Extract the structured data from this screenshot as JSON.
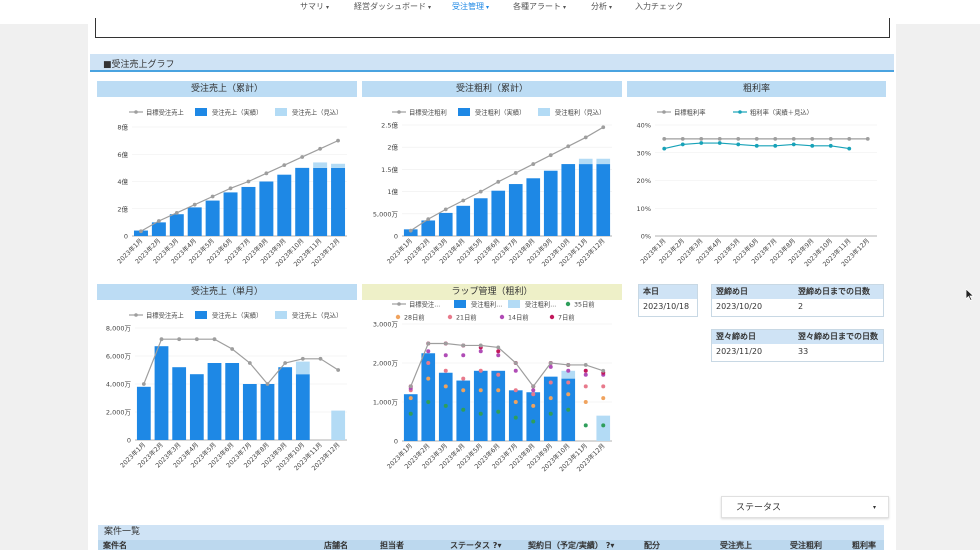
{
  "nav": [
    {
      "label": "サマリ",
      "caret": "▾"
    },
    {
      "label": "経営ダッシュボード",
      "caret": "▾"
    },
    {
      "label": "受注管理",
      "caret": "▾"
    },
    {
      "label": "各種アラート",
      "caret": "▾"
    },
    {
      "label": "分析",
      "caret": "▾"
    },
    {
      "label": "入力チェック",
      "caret": ""
    }
  ],
  "section_title": "■受注売上グラフ",
  "colors": {
    "target": "#9e9e9e",
    "actual": "#1e88e5",
    "forecast": "#b3dbf5",
    "rate_actual": "#17a2b8"
  },
  "chart_data": [
    {
      "type": "bar",
      "title": "受注売上（累計）",
      "categories": [
        "2023年1月",
        "2023年2月",
        "2023年3月",
        "2023年4月",
        "2023年5月",
        "2023年6月",
        "2023年7月",
        "2023年8月",
        "2023年9月",
        "2023年10月",
        "2023年11月",
        "2023年12月"
      ],
      "series": [
        {
          "name": "目標受注売上",
          "kind": "line",
          "values": [
            0.35,
            1.1,
            1.7,
            2.3,
            2.9,
            3.5,
            4.0,
            4.6,
            5.2,
            5.8,
            6.4,
            7.0
          ]
        },
        {
          "name": "受注売上（実績）",
          "kind": "bar",
          "values": [
            0.4,
            1.0,
            1.6,
            2.1,
            2.6,
            3.2,
            3.6,
            4.0,
            4.5,
            5.0,
            5.0,
            5.0
          ]
        },
        {
          "name": "受注売上（見込）",
          "kind": "bar",
          "values": [
            0,
            0,
            0,
            0,
            0,
            0,
            0,
            0,
            0,
            0,
            0.4,
            0.3
          ]
        }
      ],
      "yticks": [
        "0",
        "2億",
        "4億",
        "6億",
        "8億"
      ],
      "ylim": [
        0,
        8
      ]
    },
    {
      "type": "bar",
      "title": "受注粗利（累計）",
      "categories": [
        "2023年1月",
        "2023年2月",
        "2023年3月",
        "2023年4月",
        "2023年5月",
        "2023年6月",
        "2023年7月",
        "2023年8月",
        "2023年9月",
        "2023年10月",
        "2023年11月",
        "2023年12月"
      ],
      "series": [
        {
          "name": "目標受注粗利",
          "kind": "line",
          "values": [
            0.12,
            0.38,
            0.6,
            0.8,
            1.0,
            1.22,
            1.42,
            1.62,
            1.82,
            2.02,
            2.22,
            2.45
          ]
        },
        {
          "name": "受注粗利（実績）",
          "kind": "bar",
          "values": [
            0.15,
            0.35,
            0.52,
            0.68,
            0.85,
            1.02,
            1.17,
            1.3,
            1.47,
            1.62,
            1.62,
            1.62
          ]
        },
        {
          "name": "受注粗利（見込）",
          "kind": "bar",
          "values": [
            0,
            0,
            0,
            0,
            0,
            0,
            0,
            0,
            0,
            0,
            0.12,
            0.12
          ]
        }
      ],
      "yticks": [
        "0",
        "5,000万",
        "1億",
        "1.5億",
        "2億",
        "2.5億"
      ],
      "ylim": [
        0,
        2.5
      ]
    },
    {
      "type": "line",
      "title": "粗利率",
      "categories": [
        "2023年1月",
        "2023年2月",
        "2023年3月",
        "2023年4月",
        "2023年5月",
        "2023年6月",
        "2023年7月",
        "2023年8月",
        "2023年9月",
        "2023年10月",
        "2023年11月",
        "2023年12月"
      ],
      "series": [
        {
          "name": "目標粗利率",
          "kind": "line",
          "values": [
            35,
            35,
            35,
            35,
            35,
            35,
            35,
            35,
            35,
            35,
            35,
            35
          ]
        },
        {
          "name": "粗利率（実績＋見込）",
          "kind": "line",
          "values": [
            31.5,
            33,
            33.5,
            33.5,
            33,
            32.5,
            32.5,
            33,
            32.5,
            32.5,
            31.5,
            null
          ]
        }
      ],
      "yticks": [
        "0%",
        "10%",
        "20%",
        "30%",
        "40%"
      ],
      "ylim": [
        0,
        40
      ]
    },
    {
      "type": "bar",
      "title": "受注売上（単月）",
      "categories": [
        "2023年1月",
        "2023年2月",
        "2023年3月",
        "2023年4月",
        "2023年5月",
        "2023年6月",
        "2023年7月",
        "2023年8月",
        "2023年9月",
        "2023年10月",
        "2023年11月",
        "2023年12月"
      ],
      "series": [
        {
          "name": "目標受注売上",
          "kind": "line",
          "values": [
            4000,
            7200,
            7200,
            7200,
            7200,
            6500,
            5500,
            4000,
            5500,
            5800,
            5800,
            5000
          ]
        },
        {
          "name": "受注売上（実績）",
          "kind": "bar",
          "values": [
            3800,
            6700,
            5200,
            4700,
            5500,
            5500,
            4000,
            4000,
            5200,
            4700,
            0,
            0
          ]
        },
        {
          "name": "受注売上（見込）",
          "kind": "bar",
          "values": [
            0,
            0,
            0,
            0,
            0,
            0,
            0,
            0,
            0,
            900,
            0,
            2100
          ]
        }
      ],
      "yticks": [
        "0",
        "2,000万",
        "4,000万",
        "6,000万",
        "8,000万"
      ],
      "ylim": [
        0,
        8000
      ]
    },
    {
      "type": "bar",
      "title": "ラップ管理（粗利）",
      "categories": [
        "2023年1月",
        "2023年2月",
        "2023年3月",
        "2023年4月",
        "2023年5月",
        "2023年6月",
        "2023年7月",
        "2023年8月",
        "2023年9月",
        "2023年10月",
        "2023年11月",
        "2023年12月"
      ],
      "series": [
        {
          "name": "目標受注...",
          "kind": "line",
          "values": [
            1400,
            2500,
            2500,
            2450,
            2450,
            2400,
            2000,
            1400,
            2000,
            1950,
            1950,
            1800
          ]
        },
        {
          "name": "受注粗利...",
          "kind": "bar",
          "values": [
            1200,
            2250,
            1750,
            1550,
            1800,
            1800,
            1300,
            1250,
            1650,
            1600,
            0,
            0
          ]
        },
        {
          "name": "受注粗利...",
          "kind": "bar",
          "values": [
            0,
            0,
            0,
            0,
            0,
            0,
            0,
            0,
            0,
            200,
            0,
            650
          ]
        },
        {
          "name": "35日前",
          "kind": "point",
          "values": [
            700,
            1000,
            900,
            800,
            700,
            750,
            600,
            500,
            700,
            800,
            400,
            400
          ]
        },
        {
          "name": "28日前",
          "kind": "point",
          "values": [
            1100,
            1600,
            1400,
            1300,
            1300,
            1300,
            1000,
            900,
            1100,
            1200,
            1000,
            1100
          ]
        },
        {
          "name": "21日前",
          "kind": "point",
          "values": [
            1300,
            2000,
            1800,
            1600,
            1800,
            1700,
            1300,
            1200,
            1500,
            1500,
            1400,
            1400
          ]
        },
        {
          "name": "14日前",
          "kind": "point",
          "values": [
            1350,
            2300,
            2200,
            2200,
            2300,
            2200,
            1800,
            1300,
            1900,
            1800,
            1700,
            1700
          ]
        },
        {
          "name": "7日前",
          "kind": "point",
          "values": [
            1400,
            2500,
            2500,
            2450,
            2400,
            2300,
            2000,
            1400,
            2000,
            1950,
            1800,
            1750
          ]
        }
      ],
      "legend_colors": [
        "#9e9e9e",
        "#1e88e5",
        "#b3dbf5",
        "#2e9e5b",
        "#f0a35e",
        "#e87a8c",
        "#b04cb6",
        "#c2185b"
      ],
      "yticks": [
        "0",
        "1,000万",
        "2,000万",
        "3,000万"
      ],
      "ylim": [
        0,
        3000
      ]
    }
  ],
  "today": {
    "label": "本日",
    "value": "2023/10/18"
  },
  "close1": {
    "h1": "翌締め日",
    "h2": "翌締め日までの日数",
    "v1": "2023/10/20",
    "v2": "2"
  },
  "close2": {
    "h1": "翌々締め日",
    "h2": "翌々締め日までの日数",
    "v1": "2023/11/20",
    "v2": "33"
  },
  "status_dropdown": {
    "label": "ステータス",
    "caret": "▾"
  },
  "table": {
    "title": "案件一覧",
    "columns": [
      "案件名",
      "店舗名",
      "担当者",
      "ステータス",
      "契約日（予定/実績）",
      "配分",
      "受注売上",
      "受注粗利",
      "粗利率"
    ],
    "column_icons": [
      "",
      "",
      "",
      "?▾",
      "?▾",
      "",
      "",
      "",
      ""
    ]
  }
}
